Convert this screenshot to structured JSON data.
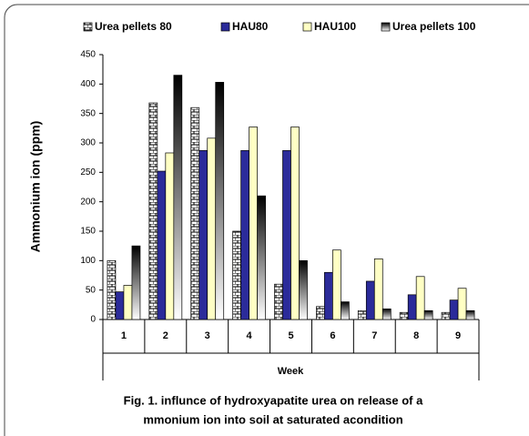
{
  "chart_data": {
    "type": "bar",
    "title": [
      "Fig. 1. influnce of hydroxyapatite  urea on release of a",
      "mmonium ion into soil at saturated acondition"
    ],
    "x_label": "Week",
    "y_label": "Ammonium ion (ppm)",
    "categories": [
      "1",
      "2",
      "3",
      "4",
      "5",
      "6",
      "7",
      "8",
      "9"
    ],
    "series": [
      {
        "name": "Urea pellets 80",
        "color": "#ffffff",
        "style": "checker",
        "values": [
          100,
          368,
          360,
          150,
          60,
          22,
          15,
          12,
          12
        ]
      },
      {
        "name": "HAU80",
        "color": "#2b2b9a",
        "style": "solid",
        "values": [
          47,
          252,
          287,
          287,
          287,
          80,
          65,
          42,
          33
        ]
      },
      {
        "name": "HAU100",
        "color": "#ffffc4",
        "style": "solid",
        "values": [
          58,
          283,
          308,
          327,
          327,
          118,
          103,
          73,
          53
        ]
      },
      {
        "name": "Urea pellets 100",
        "color": "#111111",
        "style": "gradient",
        "values": [
          125,
          415,
          403,
          210,
          100,
          30,
          18,
          15,
          15
        ]
      }
    ],
    "ylim": [
      0,
      450
    ],
    "yticks": [
      0,
      50,
      100,
      150,
      200,
      250,
      300,
      350,
      400,
      450
    ],
    "legend": "top"
  }
}
